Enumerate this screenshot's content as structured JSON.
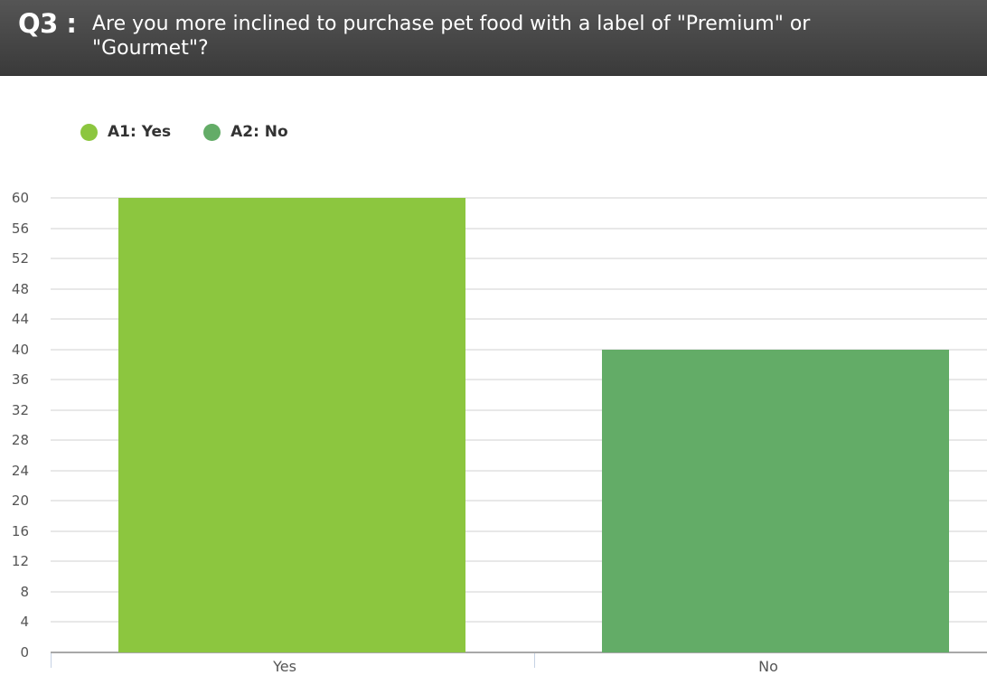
{
  "header": {
    "question_number": "Q3 :",
    "question_text": "Are you more inclined to purchase pet food with a label of \"Premium\" or \"Gourmet\"?"
  },
  "legend": {
    "items": [
      {
        "label": "A1: Yes",
        "color": "#8cc63f"
      },
      {
        "label": "A2: No",
        "color": "#63ac67"
      }
    ]
  },
  "chart_data": {
    "type": "bar",
    "title": "Are you more inclined to purchase pet food with a label of \"Premium\" or \"Gourmet\"?",
    "categories": [
      "Yes",
      "No"
    ],
    "series": [
      {
        "name": "A1: Yes",
        "values": [
          60,
          null
        ],
        "color": "#8cc63f"
      },
      {
        "name": "A2: No",
        "values": [
          null,
          40
        ],
        "color": "#63ac67"
      }
    ],
    "values": [
      60,
      40
    ],
    "xlabel": "",
    "ylabel": "",
    "ylim": [
      0,
      60
    ],
    "yticks": [
      0,
      4,
      8,
      12,
      16,
      20,
      24,
      28,
      32,
      36,
      40,
      44,
      48,
      52,
      56,
      60
    ],
    "grid": true,
    "legend_position": "top-left"
  }
}
